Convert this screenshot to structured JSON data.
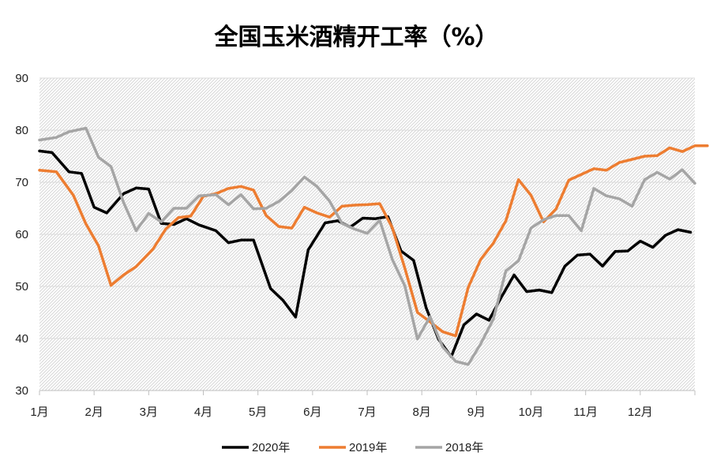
{
  "chart_data": {
    "type": "line",
    "title": "全国玉米酒精开工率（%）",
    "xlabel": "",
    "ylabel": "",
    "ylim": [
      30,
      90
    ],
    "yticks": [
      30,
      40,
      50,
      60,
      70,
      80,
      90
    ],
    "xlim": [
      0,
      12
    ],
    "xticks": [
      "1月",
      "2月",
      "3月",
      "4月",
      "5月",
      "6月",
      "7月",
      "8月",
      "9月",
      "10月",
      "11月",
      "12月"
    ],
    "grid": true,
    "legend": "bottom",
    "colors": {
      "2020年": "#000000",
      "2019年": "#ED7D31",
      "2018年": "#A5A5A5"
    },
    "series": [
      {
        "name": "2020年",
        "color": "#000000",
        "x": [
          0.0,
          0.23,
          0.54,
          0.77,
          1.0,
          1.23,
          1.54,
          1.77,
          2.0,
          2.23,
          2.46,
          2.69,
          2.92,
          3.23,
          3.46,
          3.69,
          3.92,
          4.23,
          4.46,
          4.69,
          4.92,
          5.23,
          5.46,
          5.69,
          5.92,
          6.15,
          6.38,
          6.62,
          6.85,
          7.08,
          7.31,
          7.54,
          7.77,
          8.0,
          8.23,
          8.46,
          8.69,
          8.92,
          9.15,
          9.38,
          9.62,
          9.85,
          10.08,
          10.31,
          10.54,
          10.77,
          11.0,
          11.23,
          11.46,
          11.69,
          11.92
        ],
        "values": [
          76.0,
          75.7,
          72.0,
          71.7,
          65.2,
          64.1,
          67.8,
          68.9,
          68.7,
          62.1,
          61.9,
          63.0,
          61.8,
          60.7,
          58.4,
          58.9,
          58.9,
          49.6,
          47.3,
          44.1,
          57.0,
          62.2,
          62.6,
          61.4,
          63.1,
          63.0,
          63.4,
          56.8,
          55.0,
          45.9,
          39.8,
          36.5,
          42.6,
          44.7,
          43.5,
          48.0,
          52.2,
          49.0,
          49.3,
          48.8,
          53.9,
          56.0,
          56.2,
          53.9,
          56.7,
          56.8,
          58.7,
          57.5,
          59.8,
          60.9,
          60.4
        ]
      },
      {
        "name": "2019年",
        "color": "#ED7D31",
        "x": [
          0.0,
          0.31,
          0.62,
          0.85,
          1.08,
          1.31,
          1.54,
          1.77,
          2.08,
          2.31,
          2.54,
          2.77,
          3.0,
          3.23,
          3.46,
          3.69,
          3.92,
          4.15,
          4.38,
          4.62,
          4.85,
          5.08,
          5.31,
          5.54,
          5.77,
          6.0,
          6.23,
          6.46,
          6.69,
          6.92,
          7.15,
          7.38,
          7.62,
          7.85,
          8.08,
          8.31,
          8.54,
          8.77,
          9.0,
          9.23,
          9.46,
          9.69,
          9.92,
          10.15,
          10.38,
          10.62,
          10.85,
          11.08,
          11.31,
          11.54,
          11.77,
          12.0,
          12.23
        ],
        "values": [
          72.3,
          72.0,
          67.5,
          62.0,
          57.8,
          50.2,
          52.2,
          53.8,
          57.2,
          61.0,
          63.2,
          63.5,
          67.3,
          67.8,
          68.8,
          69.2,
          68.5,
          63.6,
          61.5,
          61.2,
          65.2,
          64.1,
          63.3,
          65.4,
          65.6,
          65.7,
          65.9,
          61.3,
          53.5,
          45.0,
          43.2,
          41.3,
          40.5,
          49.8,
          55.2,
          58.3,
          62.6,
          70.5,
          67.5,
          62.4,
          64.9,
          70.4,
          71.5,
          72.6,
          72.3,
          73.8,
          74.4,
          75.0,
          75.1,
          76.6,
          75.9,
          77.0,
          77.0
        ]
      },
      {
        "name": "2018年",
        "color": "#A5A5A5",
        "x": [
          0.0,
          0.31,
          0.54,
          0.85,
          1.08,
          1.31,
          1.54,
          1.77,
          2.0,
          2.23,
          2.46,
          2.69,
          2.92,
          3.23,
          3.46,
          3.69,
          3.92,
          4.15,
          4.38,
          4.62,
          4.85,
          5.08,
          5.31,
          5.54,
          5.77,
          6.0,
          6.23,
          6.46,
          6.69,
          6.92,
          7.15,
          7.38,
          7.62,
          7.85,
          8.08,
          8.31,
          8.54,
          8.77,
          9.0,
          9.23,
          9.46,
          9.69,
          9.92,
          10.15,
          10.38,
          10.62,
          10.85,
          11.08,
          11.31,
          11.54,
          11.77,
          12.0
        ],
        "values": [
          78.1,
          78.6,
          79.7,
          80.4,
          74.8,
          73.0,
          66.1,
          60.7,
          64.0,
          62.4,
          65.0,
          65.0,
          67.4,
          67.6,
          65.7,
          67.6,
          64.9,
          65.0,
          66.3,
          68.4,
          71.0,
          69.2,
          66.4,
          62.1,
          61.0,
          60.2,
          62.7,
          55.2,
          50.1,
          39.9,
          44.2,
          38.4,
          35.6,
          35.0,
          39.0,
          43.7,
          53.0,
          54.9,
          61.2,
          62.8,
          63.6,
          63.6,
          60.7,
          68.8,
          67.4,
          66.8,
          65.4,
          70.5,
          71.9,
          70.6,
          72.4,
          69.8
        ]
      }
    ]
  }
}
